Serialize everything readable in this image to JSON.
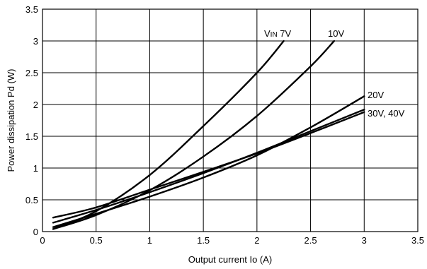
{
  "chart_data": {
    "type": "line",
    "title": "",
    "xlabel": "Output current Io (A)",
    "ylabel": "Power dissipation Pd (W)",
    "xlim": [
      0,
      3.5
    ],
    "ylim": [
      0,
      3.5
    ],
    "x_ticks": [
      "0",
      "0.5",
      "1",
      "1.5",
      "2",
      "2.5",
      "3",
      "3.5"
    ],
    "y_ticks": [
      "0",
      "0.5",
      "1",
      "1.5",
      "2",
      "2.5",
      "3",
      "3.5"
    ],
    "grid": true,
    "legend": "none",
    "series": [
      {
        "name": "VIN 7V",
        "label_main": "V",
        "label_sub": "IN",
        "label_tail": " 7V",
        "x": [
          0.1,
          0.5,
          1.0,
          1.5,
          2.0,
          2.25
        ],
        "y": [
          0.04,
          0.32,
          0.89,
          1.66,
          2.5,
          3.0
        ]
      },
      {
        "name": "10V",
        "label_main": "10V",
        "x": [
          0.1,
          0.5,
          1.0,
          1.5,
          2.0,
          2.5,
          2.72
        ],
        "y": [
          0.04,
          0.26,
          0.65,
          1.18,
          1.82,
          2.6,
          3.0
        ]
      },
      {
        "name": "20V",
        "label_main": "20V",
        "x": [
          0.1,
          0.5,
          1.0,
          1.5,
          2.0,
          2.5,
          3.0
        ],
        "y": [
          0.07,
          0.28,
          0.55,
          0.85,
          1.2,
          1.64,
          2.13
        ]
      },
      {
        "name": "30V",
        "label_main": "30V, 40V",
        "x": [
          0.1,
          0.5,
          1.0,
          1.5,
          2.0,
          2.5,
          3.0
        ],
        "y": [
          0.14,
          0.34,
          0.62,
          0.92,
          1.24,
          1.58,
          1.92
        ]
      },
      {
        "name": "40V",
        "label_main": "",
        "x": [
          0.1,
          0.5,
          1.0,
          1.5,
          2.0,
          2.5,
          3.0
        ],
        "y": [
          0.22,
          0.38,
          0.66,
          0.94,
          1.23,
          1.55,
          1.88
        ]
      }
    ]
  }
}
